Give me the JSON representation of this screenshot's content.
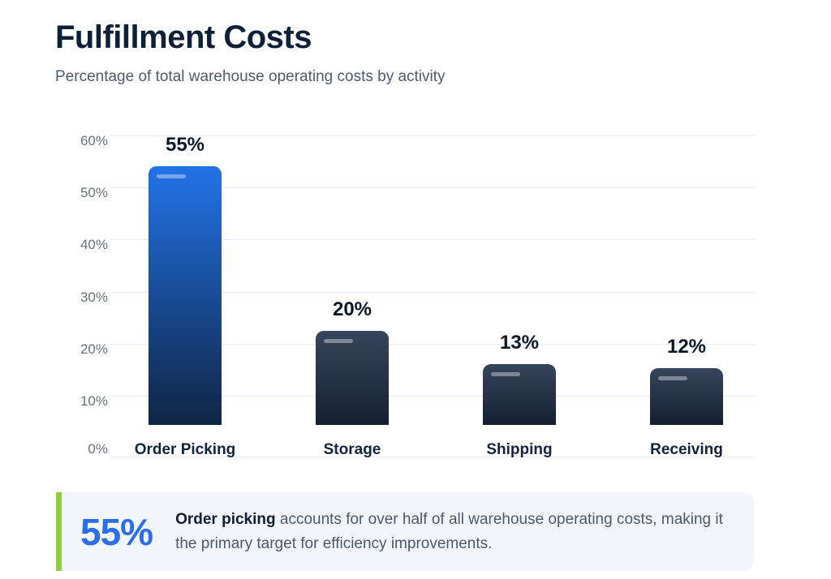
{
  "title": "Fulfillment Costs",
  "subtitle": "Percentage of total warehouse operating costs by activity",
  "chart_data": {
    "type": "bar",
    "title": "Fulfillment Costs",
    "subtitle": "Percentage of total warehouse operating costs by activity",
    "categories": [
      "Order Picking",
      "Storage",
      "Shipping",
      "Receiving"
    ],
    "values": [
      55,
      20,
      13,
      12
    ],
    "value_labels": [
      "55%",
      "20%",
      "13%",
      "12%"
    ],
    "y_ticks": [
      "60%",
      "50%",
      "40%",
      "30%",
      "20%",
      "10%",
      "0%"
    ],
    "ylim": [
      0,
      60
    ],
    "grid": true,
    "legend": false,
    "highlight_category": "Order Picking",
    "note": "First bar is highlighted blue; remaining bars are dark navy"
  },
  "colors": {
    "title_text": "#0e2038",
    "subtitle_text": "#4f5b6b",
    "gridline": "#e5eaf2",
    "tick_text": "#6a7280",
    "bar_highlight_top": "#2273e8",
    "bar_highlight_bottom": "#102544",
    "bar_dark_top": "#36455c",
    "bar_dark_bottom": "#151f31",
    "callout_bg": "#f2f6fb",
    "callout_accent": "#8ed133",
    "callout_stat_text": "#2c6de9"
  },
  "callout": {
    "stat": "55%",
    "lead": "Order picking",
    "text": " accounts for over half of all warehouse operating costs, making it the primary target for efficiency improvements."
  }
}
